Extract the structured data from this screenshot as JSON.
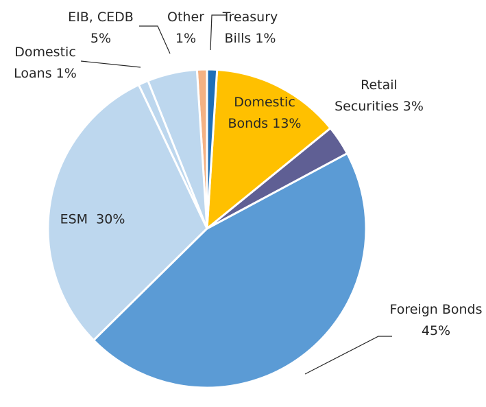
{
  "chart_data": {
    "type": "pie",
    "categories": [
      "Treasury Bills",
      "Domestic Bonds",
      "Retail Securities",
      "Foreign Bonds",
      "ESM",
      "Domestic Loans",
      "EIB, CEDB",
      "Other"
    ],
    "values": [
      1,
      13,
      3,
      45,
      30,
      1,
      5,
      1
    ],
    "value_labels": [
      "1%",
      "13%",
      "3%",
      "45%",
      "30%",
      "1%",
      "5%",
      "1%"
    ],
    "colors": [
      "#1f6fb8",
      "#ffc000",
      "#5f5f94",
      "#5b9bd5",
      "#bdd7ee",
      "#bdd7ee",
      "#bdd7ee",
      "#f4b183"
    ]
  }
}
